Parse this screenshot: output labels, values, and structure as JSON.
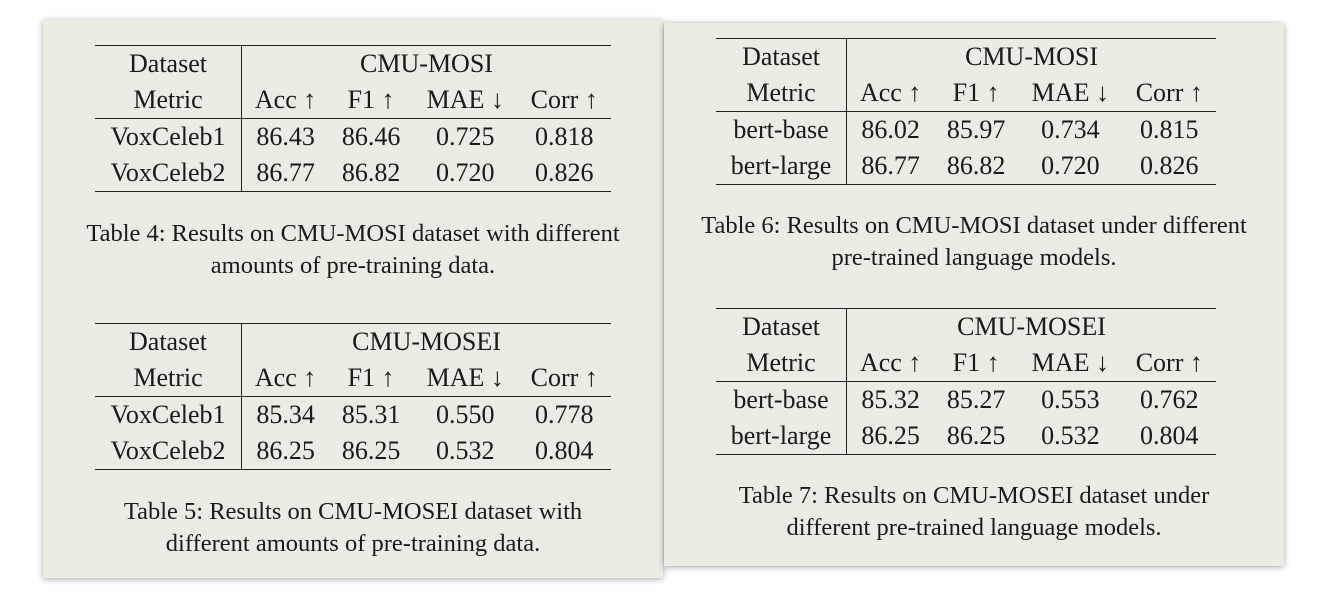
{
  "tables": [
    {
      "id": "t4",
      "header_col1_row1": "Dataset",
      "header_col1_row2": "Metric",
      "group": "CMU-MOSI",
      "metrics": [
        "Acc ↑",
        "F1 ↑",
        "MAE ↓",
        "Corr ↑"
      ],
      "rows": [
        {
          "label": "VoxCeleb1",
          "values": [
            "86.43",
            "86.46",
            "0.725",
            "0.818"
          ]
        },
        {
          "label": "VoxCeleb2",
          "values": [
            "86.77",
            "86.82",
            "0.720",
            "0.826"
          ]
        }
      ],
      "caption_line1": "Table 4: Results on CMU-MOSI dataset with different",
      "caption_line2": "amounts of pre-training data."
    },
    {
      "id": "t5",
      "header_col1_row1": "Dataset",
      "header_col1_row2": "Metric",
      "group": "CMU-MOSEI",
      "metrics": [
        "Acc ↑",
        "F1 ↑",
        "MAE ↓",
        "Corr ↑"
      ],
      "rows": [
        {
          "label": "VoxCeleb1",
          "values": [
            "85.34",
            "85.31",
            "0.550",
            "0.778"
          ]
        },
        {
          "label": "VoxCeleb2",
          "values": [
            "86.25",
            "86.25",
            "0.532",
            "0.804"
          ]
        }
      ],
      "caption_line1": "Table 5: Results on CMU-MOSEI dataset with",
      "caption_line2": "different amounts of pre-training data."
    },
    {
      "id": "t6",
      "header_col1_row1": "Dataset",
      "header_col1_row2": "Metric",
      "group": "CMU-MOSI",
      "metrics": [
        "Acc ↑",
        "F1 ↑",
        "MAE ↓",
        "Corr ↑"
      ],
      "rows": [
        {
          "label": "bert-base",
          "values": [
            "86.02",
            "85.97",
            "0.734",
            "0.815"
          ]
        },
        {
          "label": "bert-large",
          "values": [
            "86.77",
            "86.82",
            "0.720",
            "0.826"
          ]
        }
      ],
      "caption_line1": "Table 6: Results on CMU-MOSI dataset under different",
      "caption_line2": "pre-trained language models."
    },
    {
      "id": "t7",
      "header_col1_row1": "Dataset",
      "header_col1_row2": "Metric",
      "group": "CMU-MOSEI",
      "metrics": [
        "Acc ↑",
        "F1 ↑",
        "MAE ↓",
        "Corr ↑"
      ],
      "rows": [
        {
          "label": "bert-base",
          "values": [
            "85.32",
            "85.27",
            "0.553",
            "0.762"
          ]
        },
        {
          "label": "bert-large",
          "values": [
            "86.25",
            "86.25",
            "0.532",
            "0.804"
          ]
        }
      ],
      "caption_line1": "Table 7: Results on CMU-MOSEI dataset under",
      "caption_line2": "different pre-trained language models."
    }
  ],
  "colors": {
    "panel_background": "#e9ede4",
    "rule": "#222222"
  }
}
